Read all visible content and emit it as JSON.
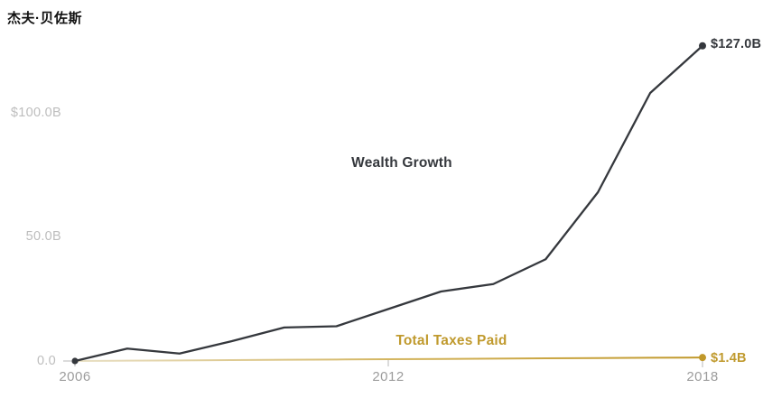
{
  "page": {
    "title": "杰夫·贝佐斯"
  },
  "colors": {
    "title": "#121212",
    "wealth_line": "#35383D",
    "wealth_text": "#35383D",
    "taxes_line_start": "#E8DFC4",
    "taxes_line_mid": "#D2B258",
    "taxes_line_end": "#C0982A",
    "taxes_text": "#C09A2E",
    "y_axis_label": "#BDBDBD",
    "x_axis_label": "#9C9C9C",
    "tick": "#CFCFCF",
    "background": "#FFFFFF"
  },
  "chart_data": {
    "type": "line",
    "title": "杰夫·贝佐斯",
    "x": [
      2006,
      2007,
      2008,
      2009,
      2010,
      2011,
      2012,
      2013,
      2014,
      2015,
      2016,
      2017,
      2018
    ],
    "series": [
      {
        "name": "Wealth Growth",
        "values": [
          0,
          5,
          3,
          8,
          13.5,
          14,
          21,
          28,
          31,
          41,
          68,
          108,
          127
        ],
        "color": "#35383D",
        "end_label": "$127.0B",
        "start_dot": true,
        "end_dot": true
      },
      {
        "name": "Total Taxes Paid",
        "values": [
          0,
          0.12,
          0.24,
          0.36,
          0.48,
          0.6,
          0.72,
          0.84,
          0.96,
          1.08,
          1.2,
          1.3,
          1.4
        ],
        "color": "#C0982A",
        "end_label": "$1.4B",
        "start_dot": false,
        "end_dot": true
      }
    ],
    "unit": "billions USD",
    "ylim": [
      0,
      130
    ],
    "ytick_labels": [
      "$100.0B",
      "50.0B",
      "0.0"
    ],
    "ytick_values": [
      100,
      50,
      0
    ],
    "xtick_labels": [
      "2006",
      "2012",
      "2018"
    ],
    "xtick_values": [
      2006,
      2012,
      2018
    ],
    "grid": false,
    "legend": "inline-annotations"
  }
}
